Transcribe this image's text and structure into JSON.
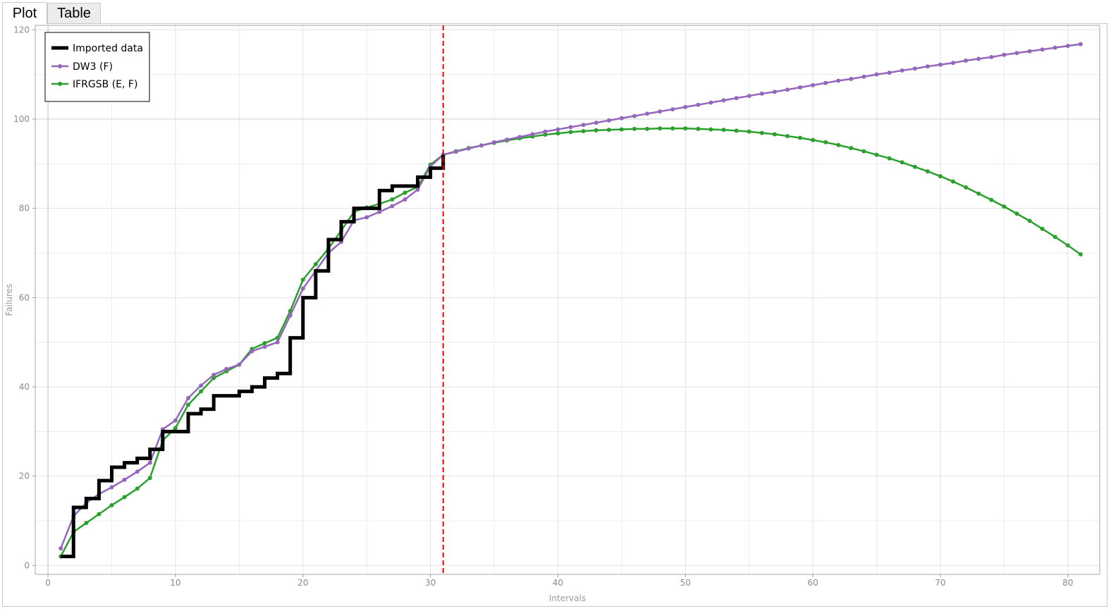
{
  "tabs": [
    {
      "label": "Plot",
      "active": true
    },
    {
      "label": "Table",
      "active": false
    }
  ],
  "chart_data": {
    "type": "line",
    "title": "",
    "xlabel": "Intervals",
    "ylabel": "Failures",
    "xlim": [
      -1,
      82.5
    ],
    "ylim": [
      -2,
      121
    ],
    "xticks": [
      0,
      10,
      20,
      30,
      40,
      50,
      60,
      70,
      80
    ],
    "yticks": [
      0,
      20,
      40,
      60,
      80,
      100,
      120
    ],
    "grid": true,
    "legend_position": "top-left",
    "vline": {
      "x": 31,
      "color": "#ee0000",
      "style": "dashed"
    },
    "series": [
      {
        "name": "Imported data",
        "color": "#000000",
        "style": "step",
        "x": [
          1,
          2,
          3,
          4,
          5,
          6,
          7,
          8,
          9,
          10,
          11,
          12,
          13,
          14,
          15,
          16,
          17,
          18,
          19,
          20,
          21,
          22,
          23,
          24,
          25,
          26,
          27,
          28,
          29,
          30,
          31
        ],
        "values": [
          2,
          13,
          15,
          19,
          22,
          23,
          24,
          26,
          30,
          30,
          34,
          35,
          38,
          38,
          39,
          40,
          42,
          43,
          51,
          60,
          66,
          73,
          77,
          80,
          80,
          84,
          85,
          85,
          87,
          89,
          92
        ]
      },
      {
        "name": "DW3 (F)",
        "color": "#9467bd",
        "style": "line-marker",
        "x": [
          1,
          2,
          3,
          4,
          5,
          6,
          7,
          8,
          9,
          10,
          11,
          12,
          13,
          14,
          15,
          16,
          17,
          18,
          19,
          20,
          21,
          22,
          23,
          24,
          25,
          26,
          27,
          28,
          29,
          30,
          31,
          32,
          33,
          34,
          35,
          36,
          37,
          38,
          39,
          40,
          41,
          42,
          43,
          44,
          45,
          46,
          47,
          48,
          49,
          50,
          51,
          52,
          53,
          54,
          55,
          56,
          57,
          58,
          59,
          60,
          61,
          62,
          63,
          64,
          65,
          66,
          67,
          68,
          69,
          70,
          71,
          72,
          73,
          74,
          75,
          76,
          77,
          78,
          79,
          80,
          81
        ],
        "values": [
          3.8,
          11,
          14,
          16,
          17.5,
          19.2,
          21,
          23,
          30.5,
          32.5,
          37.5,
          40.3,
          42.7,
          44,
          45,
          48,
          49,
          50,
          56,
          62,
          66,
          70,
          72.5,
          77.3,
          78,
          79.2,
          80.5,
          82,
          84.2,
          89.4,
          92,
          92.7,
          93.4,
          94.1,
          94.8,
          95.4,
          96.0,
          96.6,
          97.2,
          97.7,
          98.2,
          98.7,
          99.2,
          99.7,
          100.2,
          100.7,
          101.2,
          101.7,
          102.2,
          102.7,
          103.2,
          103.7,
          104.2,
          104.7,
          105.2,
          105.7,
          106.1,
          106.6,
          107.1,
          107.6,
          108.1,
          108.6,
          109.0,
          109.5,
          110.0,
          110.4,
          110.9,
          111.3,
          111.8,
          112.2,
          112.6,
          113.1,
          113.5,
          113.9,
          114.4,
          114.8,
          115.2,
          115.6,
          116.0,
          116.4,
          116.8
        ]
      },
      {
        "name": "IFRGSB (E, F)",
        "color": "#2ca02c",
        "style": "line-marker",
        "x": [
          1,
          2,
          3,
          4,
          5,
          6,
          7,
          8,
          9,
          10,
          11,
          12,
          13,
          14,
          15,
          16,
          17,
          18,
          19,
          20,
          21,
          22,
          23,
          24,
          25,
          26,
          27,
          28,
          29,
          30,
          31,
          32,
          33,
          34,
          35,
          36,
          37,
          38,
          39,
          40,
          41,
          42,
          43,
          44,
          45,
          46,
          47,
          48,
          49,
          50,
          51,
          52,
          53,
          54,
          55,
          56,
          57,
          58,
          59,
          60,
          61,
          62,
          63,
          64,
          65,
          66,
          67,
          68,
          69,
          70,
          71,
          72,
          73,
          74,
          75,
          76,
          77,
          78,
          79,
          80,
          81
        ],
        "values": [
          2,
          7.5,
          9.5,
          11.5,
          13.5,
          15.3,
          17.2,
          19.6,
          28,
          30.8,
          36,
          39,
          42,
          43.5,
          45,
          48.5,
          49.8,
          51,
          57,
          64,
          67.5,
          71,
          75,
          79.2,
          80.2,
          81,
          82,
          83.5,
          84.8,
          89.8,
          92,
          92.8,
          93.5,
          94.1,
          94.7,
          95.2,
          95.7,
          96.1,
          96.5,
          96.8,
          97.1,
          97.3,
          97.5,
          97.6,
          97.7,
          97.8,
          97.8,
          97.9,
          97.9,
          97.9,
          97.8,
          97.7,
          97.6,
          97.4,
          97.2,
          96.9,
          96.6,
          96.2,
          95.8,
          95.3,
          94.8,
          94.2,
          93.5,
          92.8,
          92.0,
          91.2,
          90.3,
          89.3,
          88.3,
          87.2,
          86.0,
          84.7,
          83.3,
          81.9,
          80.4,
          78.8,
          77.2,
          75.4,
          73.6,
          71.7,
          69.7
        ]
      }
    ]
  }
}
